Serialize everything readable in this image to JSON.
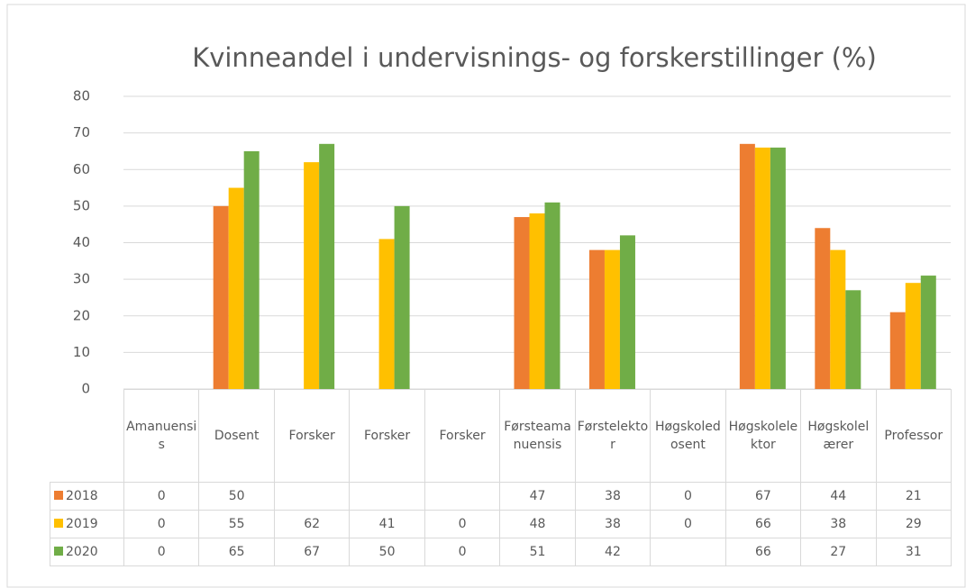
{
  "chart_data": {
    "type": "bar",
    "title": "Kvinneandel i undervisnings- og forskerstillinger (%)",
    "categories": [
      "Amanuensis",
      "Dosent",
      "Forsker",
      "Forsker",
      "Forsker",
      "Førsteamanuensis",
      "Førstelektor",
      "Høgskoledosent",
      "Høgskolelektor",
      "Høgskolelærer",
      "Professor"
    ],
    "series": [
      {
        "name": "2018",
        "color": "#ed7d31",
        "values": [
          0,
          50,
          null,
          null,
          null,
          47,
          38,
          0,
          67,
          44,
          21
        ]
      },
      {
        "name": "2019",
        "color": "#ffc000",
        "values": [
          0,
          55,
          62,
          41,
          0,
          48,
          38,
          0,
          66,
          38,
          29
        ]
      },
      {
        "name": "2020",
        "color": "#70ad47",
        "values": [
          0,
          65,
          67,
          50,
          0,
          51,
          42,
          null,
          66,
          27,
          31
        ]
      }
    ],
    "ylim": [
      0,
      80
    ],
    "yticks": [
      0,
      10,
      20,
      30,
      40,
      50,
      60,
      70,
      80
    ],
    "grid": true
  }
}
